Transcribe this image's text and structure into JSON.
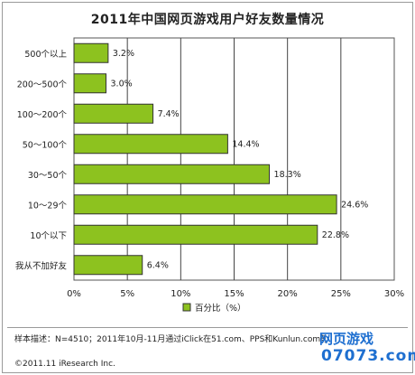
{
  "title": "2011年中国网页游戏用户好友数量情况",
  "chart_data": {
    "type": "bar",
    "orientation": "horizontal",
    "categories": [
      "500个以上",
      "200～500个",
      "100～200个",
      "50～100个",
      "30～50个",
      "10～29个",
      "10个以下",
      "我从不加好友"
    ],
    "values": [
      3.2,
      3.0,
      7.4,
      14.4,
      18.3,
      24.6,
      22.8,
      6.4
    ],
    "data_labels": [
      "3.2%",
      "3.0%",
      "7.4%",
      "14.4%",
      "18.3%",
      "24.6%",
      "22.8%",
      "6.4%"
    ],
    "xlim": [
      0,
      30
    ],
    "xticks": [
      "0%",
      "5%",
      "10%",
      "15%",
      "20%",
      "25%",
      "30%"
    ],
    "grid": true,
    "legend": "bottom",
    "series_name": "百分比（%）",
    "bar_color": "#8dc21f"
  },
  "footer": {
    "sample_note": "样本描述：N=4510；2011年10月-11月通过iClick在51.com、PPS和Kunlun.com等",
    "copyright": "©2011.11 iResearch Inc."
  },
  "watermark": {
    "text": "网页游戏",
    "site": "07073.com"
  }
}
